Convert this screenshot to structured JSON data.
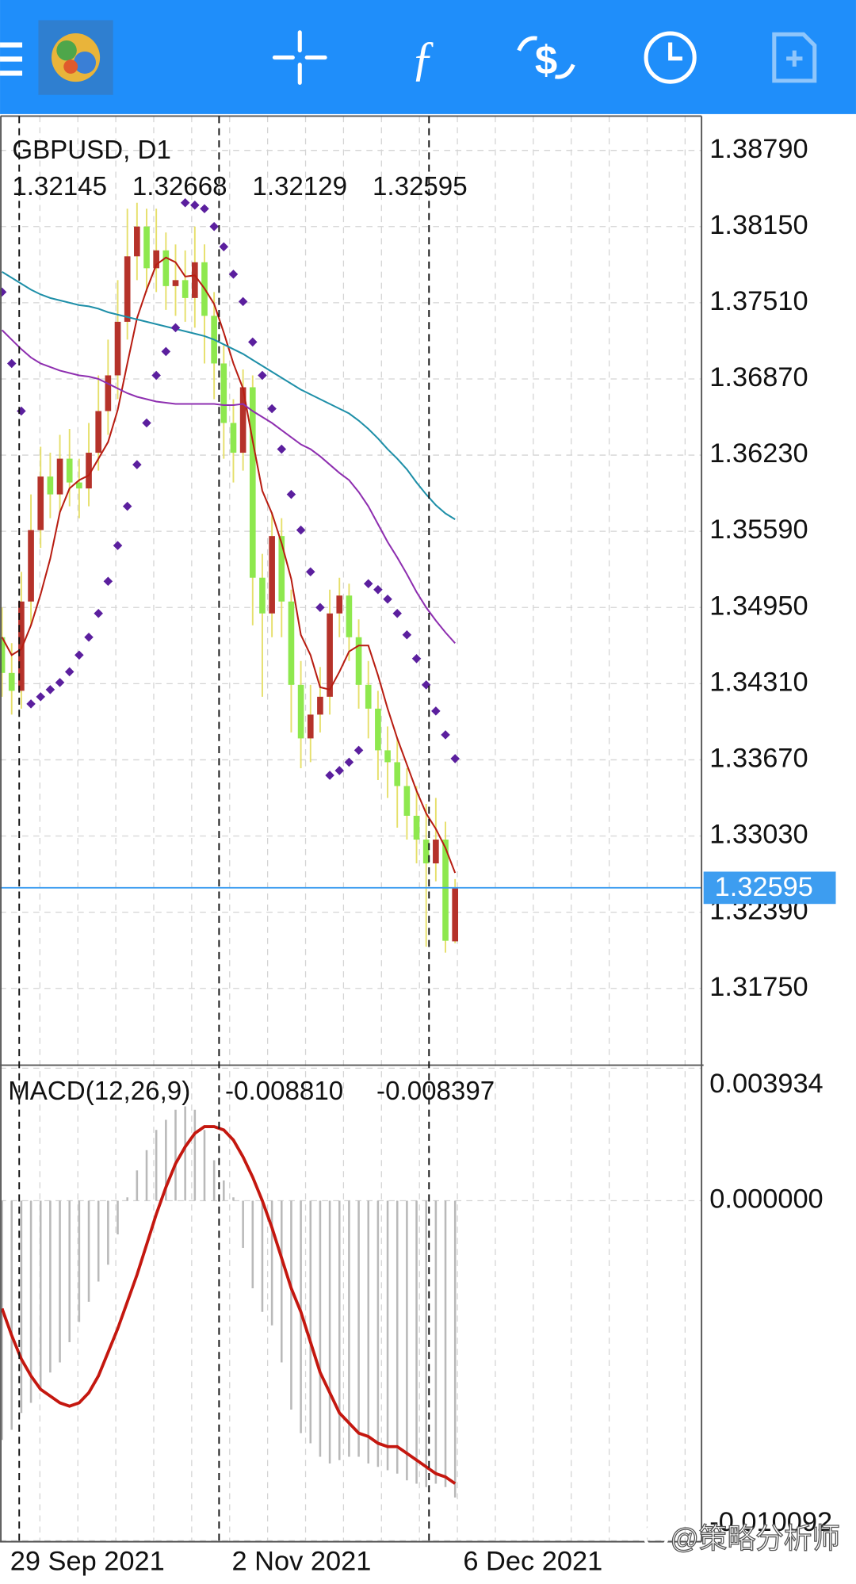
{
  "chart_data": [
    {
      "type": "candlestick",
      "title": "GBPUSD, D1",
      "categories": [
        "29 Sep 2021",
        null,
        null,
        null,
        null,
        null,
        null,
        null,
        null,
        null,
        null,
        null,
        null,
        null,
        null,
        null,
        null,
        null,
        null,
        null,
        null,
        null,
        null,
        "2 Nov 2021",
        null,
        null,
        null,
        null,
        null,
        null,
        null,
        null,
        null,
        null,
        null,
        null,
        null,
        null,
        null,
        null,
        null,
        null,
        null,
        null,
        null,
        null,
        null,
        "6 Dec 2021"
      ],
      "open": [
        1.347,
        1.344,
        1.3425,
        1.35,
        1.356,
        1.3605,
        1.359,
        1.362,
        1.36,
        1.3595,
        1.3625,
        1.366,
        1.369,
        1.3735,
        1.379,
        1.3815,
        1.378,
        1.3795,
        1.3765,
        1.377,
        1.3755,
        1.3785,
        1.374,
        1.37,
        1.365,
        1.3625,
        1.368,
        1.352,
        1.349,
        1.3555,
        1.35,
        1.343,
        1.3385,
        1.3405,
        1.342,
        1.349,
        1.3505,
        1.347,
        1.343,
        1.341,
        1.3375,
        1.3365,
        1.3345,
        1.332,
        1.33,
        1.328,
        1.33,
        1.32145
      ],
      "high": [
        1.3495,
        1.3465,
        1.3525,
        1.359,
        1.363,
        1.3625,
        1.364,
        1.3645,
        1.362,
        1.365,
        1.369,
        1.372,
        1.377,
        1.383,
        1.3835,
        1.383,
        1.383,
        1.381,
        1.38,
        1.3795,
        1.3815,
        1.38,
        1.376,
        1.3715,
        1.367,
        1.3695,
        1.369,
        1.354,
        1.3575,
        1.357,
        1.351,
        1.345,
        1.343,
        1.3445,
        1.351,
        1.352,
        1.3515,
        1.3485,
        1.345,
        1.3425,
        1.3395,
        1.3385,
        1.336,
        1.3345,
        1.333,
        1.3335,
        1.3315,
        1.32668
      ],
      "low": [
        1.342,
        1.3405,
        1.341,
        1.348,
        1.3545,
        1.357,
        1.3575,
        1.358,
        1.357,
        1.358,
        1.361,
        1.364,
        1.367,
        1.372,
        1.377,
        1.376,
        1.376,
        1.3745,
        1.374,
        1.3735,
        1.373,
        1.37,
        1.367,
        1.362,
        1.36,
        1.361,
        1.348,
        1.342,
        1.347,
        1.347,
        1.339,
        1.336,
        1.3365,
        1.339,
        1.3405,
        1.347,
        1.345,
        1.341,
        1.3385,
        1.335,
        1.3335,
        1.331,
        1.33,
        1.328,
        1.321,
        1.3265,
        1.3205,
        1.32129
      ],
      "close": [
        1.344,
        1.3425,
        1.35,
        1.356,
        1.3605,
        1.359,
        1.362,
        1.36,
        1.3595,
        1.3625,
        1.366,
        1.369,
        1.3735,
        1.379,
        1.3815,
        1.378,
        1.3795,
        1.3765,
        1.377,
        1.3755,
        1.3785,
        1.374,
        1.37,
        1.365,
        1.3625,
        1.368,
        1.352,
        1.349,
        1.3555,
        1.35,
        1.343,
        1.3385,
        1.3405,
        1.342,
        1.349,
        1.3505,
        1.347,
        1.343,
        1.341,
        1.3375,
        1.3365,
        1.3345,
        1.332,
        1.33,
        1.328,
        1.33,
        1.3215,
        1.32595
      ],
      "bull_color": "#b5322a",
      "bear_color": "#8ee84e",
      "wick_color": "#e6df6a",
      "overlays": [
        {
          "type": "line",
          "color": "#b81d12",
          "values": [
            1.347,
            1.3455,
            1.346,
            1.348,
            1.3506,
            1.3536,
            1.3575,
            1.3595,
            1.3602,
            1.3606,
            1.362,
            1.3634,
            1.3661,
            1.37,
            1.3738,
            1.3762,
            1.3783,
            1.3789,
            1.3785,
            1.3773,
            1.3774,
            1.3763,
            1.375,
            1.3726,
            1.37,
            1.3679,
            1.3635,
            1.3593,
            1.3574,
            1.3549,
            1.3519,
            1.3472,
            1.3455,
            1.3428,
            1.3426,
            1.3441,
            1.3458,
            1.3463,
            1.3463,
            1.3438,
            1.341,
            1.3385,
            1.3363,
            1.3341,
            1.3322,
            1.3309,
            1.3293,
            1.3272
          ]
        },
        {
          "type": "line",
          "color": "#8e2fb0",
          "values": [
            1.3728,
            1.372,
            1.3712,
            1.3705,
            1.37,
            1.3697,
            1.3694,
            1.3692,
            1.369,
            1.3689,
            1.3687,
            1.3683,
            1.3679,
            1.3675,
            1.3672,
            1.367,
            1.3668,
            1.3667,
            1.3666,
            1.3666,
            1.3666,
            1.3666,
            1.3666,
            1.3665,
            1.3665,
            1.3666,
            1.366,
            1.3655,
            1.365,
            1.3644,
            1.3638,
            1.3632,
            1.3628,
            1.3622,
            1.3615,
            1.3608,
            1.3602,
            1.3592,
            1.358,
            1.3565,
            1.355,
            1.3537,
            1.3523,
            1.3508,
            1.3495,
            1.3484,
            1.3474,
            1.3465
          ]
        },
        {
          "type": "line",
          "color": "#1e8fa8",
          "values": [
            1.3777,
            1.3772,
            1.3767,
            1.3762,
            1.3758,
            1.3755,
            1.3753,
            1.3751,
            1.3749,
            1.3748,
            1.3746,
            1.3743,
            1.3741,
            1.3739,
            1.3737,
            1.3735,
            1.3733,
            1.3731,
            1.3729,
            1.3727,
            1.3725,
            1.3723,
            1.372,
            1.3716,
            1.3712,
            1.3708,
            1.3703,
            1.3698,
            1.3693,
            1.3688,
            1.3683,
            1.3678,
            1.3674,
            1.367,
            1.3666,
            1.3662,
            1.3658,
            1.3652,
            1.3645,
            1.3637,
            1.3628,
            1.362,
            1.3611,
            1.36,
            1.359,
            1.3581,
            1.3574,
            1.3569
          ]
        },
        {
          "type": "dots",
          "color": "#5b1f9e",
          "values": [
            1.376,
            1.37,
            1.366,
            1.3414,
            1.342,
            1.3426,
            1.3432,
            1.3441,
            1.3455,
            1.347,
            1.349,
            1.3517,
            1.3547,
            1.358,
            1.3615,
            1.365,
            1.369,
            1.371,
            1.373,
            1.3835,
            1.3833,
            1.383,
            1.3815,
            1.3798,
            1.3775,
            1.3752,
            1.3718,
            1.369,
            1.3662,
            1.3628,
            1.359,
            1.356,
            1.3525,
            1.3495,
            1.3354,
            1.3358,
            1.3365,
            1.3375,
            1.3515,
            1.351,
            1.3502,
            1.349,
            1.3472,
            1.3452,
            1.343,
            1.3408,
            1.3388,
            1.3368
          ]
        }
      ],
      "ylim": [
        1.31105,
        1.39078
      ],
      "yticks": [
        {
          "value": 1.3879,
          "label": "1.38790"
        },
        {
          "value": 1.3815,
          "label": "1.38150"
        },
        {
          "value": 1.3751,
          "label": "1.37510"
        },
        {
          "value": 1.3687,
          "label": "1.36870"
        },
        {
          "value": 1.3623,
          "label": "1.36230"
        },
        {
          "value": 1.3559,
          "label": "1.35590"
        },
        {
          "value": 1.3495,
          "label": "1.34950"
        },
        {
          "value": 1.3431,
          "label": "1.34310"
        },
        {
          "value": 1.3367,
          "label": "1.33670"
        },
        {
          "value": 1.3303,
          "label": "1.33030"
        },
        {
          "value": 1.3239,
          "label": "1.32390"
        },
        {
          "value": 1.3175,
          "label": "1.31750"
        }
      ],
      "grid": true,
      "price_line_color": "#3d9df0"
    },
    {
      "type": "macd",
      "title": "MACD(12,26,9)",
      "current": [
        {
          "value": -0.00881,
          "label": "-0.008810"
        },
        -0.008397
      ],
      "series": [
        {
          "type": "bar",
          "color": "#b9b9b9",
          "values": [
            -0.0071,
            -0.0068,
            -0.0063,
            -0.006,
            -0.0056,
            -0.0051,
            -0.0048,
            -0.0042,
            -0.0036,
            -0.003,
            -0.0024,
            -0.0019,
            -0.001,
            0.0001,
            0.0009,
            0.0015,
            0.0021,
            0.0024,
            0.0027,
            0.0028,
            0.0027,
            0.0021,
            0.0012,
            0.0006,
            0.0001,
            -0.0014,
            -0.0026,
            -0.0033,
            -0.0037,
            -0.0048,
            -0.0062,
            -0.0069,
            -0.0072,
            -0.0076,
            -0.0078,
            -0.0077,
            -0.0076,
            -0.0076,
            -0.0078,
            -0.0079,
            -0.008,
            -0.0081,
            -0.0083,
            -0.0084,
            -0.0085,
            -0.0084,
            -0.0085,
            -0.00881
          ]
        },
        {
          "type": "line",
          "color": "#c4170f",
          "values": [
            -0.0032,
            -0.004,
            -0.0047,
            -0.0052,
            -0.0056,
            -0.0058,
            -0.006,
            -0.0061,
            -0.006,
            -0.0057,
            -0.0052,
            -0.0045,
            -0.0038,
            -0.003,
            -0.0022,
            -0.0013,
            -0.0004,
            0.0004,
            0.0011,
            0.0016,
            0.002,
            0.0022,
            0.0022,
            0.0021,
            0.0018,
            0.0013,
            0.0007,
            0.0,
            -0.0008,
            -0.0017,
            -0.0026,
            -0.0033,
            -0.0042,
            -0.0051,
            -0.0057,
            -0.0063,
            -0.0066,
            -0.0069,
            -0.007,
            -0.0072,
            -0.0073,
            -0.0073,
            -0.0075,
            -0.0077,
            -0.0079,
            -0.0081,
            -0.0082,
            -0.008397
          ]
        }
      ],
      "ylim": [
        -0.010092,
        0.003934
      ],
      "yticks": [
        0.003934,
        {
          "value": 0,
          "label": "0.000000"
        },
        -0.010092
      ],
      "grid": true
    }
  ],
  "watermark": "@策略分析师"
}
